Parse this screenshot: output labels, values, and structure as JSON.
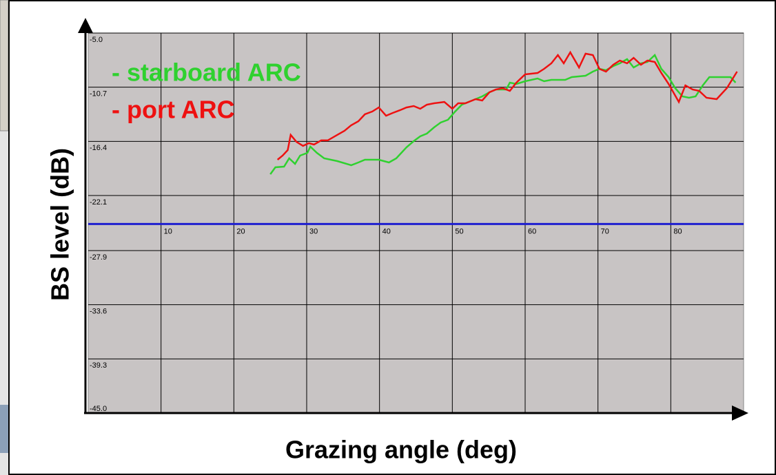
{
  "chart_data": {
    "type": "line",
    "xlabel": "Grazing angle (deg)",
    "ylabel": "BS level (dB)",
    "xlim": [
      0,
      90
    ],
    "ylim": [
      -45,
      -5
    ],
    "xticks": [
      10,
      20,
      30,
      40,
      50,
      60,
      70,
      80
    ],
    "yticks": [
      {
        "value": -5,
        "label": "-5.0"
      },
      -10.7,
      -16.4,
      -22.1,
      -27.9,
      -33.6,
      -39.3,
      {
        "value": -45,
        "label": "-45.0"
      }
    ],
    "grid": true,
    "legend": "upper left",
    "baseline": -25.1,
    "baseline_color": "#1f1fd0",
    "series": [
      {
        "name": "- starboard ARC",
        "color": "#2fd12f",
        "x": [
          25.0,
          25.7,
          26.9,
          27.6,
          28.4,
          29.1,
          30.1,
          30.5,
          31.4,
          32.4,
          34.2,
          36.1,
          37.1,
          38.0,
          39.9,
          41.3,
          42.3,
          43.7,
          44.7,
          45.6,
          46.5,
          47.5,
          48.4,
          49.4,
          50.3,
          51.3,
          52.2,
          53.2,
          54.1,
          55.1,
          56.0,
          57.4,
          57.9,
          58.8,
          60.0,
          61.7,
          62.6,
          63.6,
          65.5,
          66.4,
          68.3,
          69.3,
          70.2,
          71.1,
          72.1,
          73.0,
          74.0,
          74.9,
          75.9,
          76.8,
          77.8,
          78.7,
          79.7,
          80.6,
          81.6,
          82.5,
          83.4,
          84.4,
          85.3,
          88.2,
          88.9
        ],
        "values": [
          -19.86,
          -19.13,
          -19.06,
          -18.19,
          -18.77,
          -17.9,
          -17.61,
          -16.96,
          -17.61,
          -18.19,
          -18.48,
          -18.91,
          -18.62,
          -18.33,
          -18.33,
          -18.62,
          -18.19,
          -17.03,
          -16.38,
          -15.87,
          -15.58,
          -14.93,
          -14.42,
          -14.13,
          -13.33,
          -12.54,
          -12.25,
          -11.96,
          -11.67,
          -11.23,
          -10.94,
          -10.94,
          -10.22,
          -10.36,
          -10.07,
          -9.78,
          -10.07,
          -9.93,
          -9.93,
          -9.64,
          -9.49,
          -9.06,
          -8.77,
          -8.91,
          -8.48,
          -8.19,
          -7.75,
          -8.62,
          -8.19,
          -8.04,
          -7.32,
          -8.77,
          -9.64,
          -10.8,
          -11.67,
          -11.81,
          -11.67,
          -10.51,
          -9.64,
          -9.64,
          -10.22
        ]
      },
      {
        "name": "- port ARC",
        "color": "#ee1111",
        "x": [
          26.0,
          26.7,
          27.4,
          27.8,
          28.6,
          29.5,
          30.3,
          31.0,
          32.0,
          32.9,
          34.2,
          35.2,
          36.1,
          37.1,
          38.0,
          39.0,
          39.9,
          40.9,
          41.8,
          42.8,
          43.7,
          44.7,
          45.6,
          46.5,
          47.5,
          48.9,
          50.0,
          50.8,
          51.8,
          53.2,
          54.1,
          55.1,
          56.0,
          56.9,
          57.9,
          58.8,
          60.0,
          61.7,
          62.6,
          63.6,
          64.5,
          65.3,
          66.2,
          67.4,
          68.3,
          69.3,
          70.2,
          71.1,
          72.1,
          73.0,
          74.0,
          74.9,
          75.9,
          76.8,
          77.8,
          78.7,
          79.7,
          81.1,
          82.0,
          83.0,
          83.9,
          84.9,
          86.3,
          87.7,
          89.1
        ],
        "values": [
          -18.33,
          -17.9,
          -17.32,
          -15.72,
          -16.45,
          -16.88,
          -16.59,
          -16.74,
          -16.3,
          -16.3,
          -15.72,
          -15.29,
          -14.71,
          -14.28,
          -13.55,
          -13.26,
          -12.83,
          -13.7,
          -13.41,
          -13.12,
          -12.83,
          -12.68,
          -12.97,
          -12.54,
          -12.39,
          -12.25,
          -12.97,
          -12.39,
          -12.39,
          -11.96,
          -12.1,
          -11.23,
          -10.94,
          -10.8,
          -11.09,
          -10.22,
          -9.35,
          -9.2,
          -8.77,
          -8.19,
          -7.32,
          -8.19,
          -7.03,
          -8.62,
          -7.17,
          -7.32,
          -8.77,
          -9.06,
          -8.33,
          -7.9,
          -8.19,
          -7.61,
          -8.33,
          -7.9,
          -8.04,
          -9.2,
          -10.36,
          -12.25,
          -10.51,
          -10.94,
          -11.09,
          -11.81,
          -11.96,
          -10.8,
          -9.06
        ]
      }
    ]
  }
}
